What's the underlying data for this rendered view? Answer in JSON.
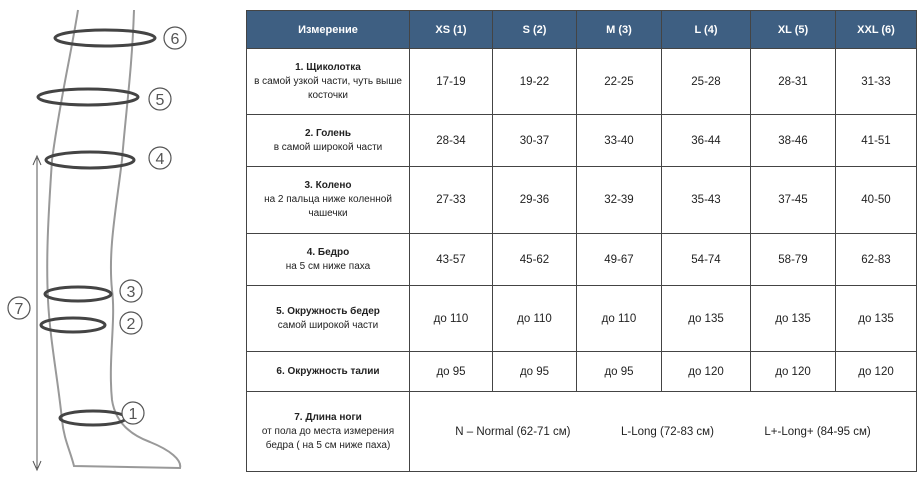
{
  "diagram": {
    "markers": [
      "1",
      "2",
      "3",
      "4",
      "5",
      "6",
      "7"
    ]
  },
  "table": {
    "headers": [
      "Измерение",
      "XS (1)",
      "S (2)",
      "M (3)",
      "L (4)",
      "XL (5)",
      "XXL (6)"
    ],
    "rows": [
      {
        "title": "1.  Щиколотка",
        "desc": "в самой узкой части, чуть выше косточки",
        "values": [
          "17-19",
          "19-22",
          "22-25",
          "25-28",
          "28-31",
          "31-33"
        ]
      },
      {
        "title": "2.  Голень",
        "desc": "в самой широкой части",
        "values": [
          "28-34",
          "30-37",
          "33-40",
          "36-44",
          "38-46",
          "41-51"
        ]
      },
      {
        "title": "3.  Колено",
        "desc": "на 2 пальца ниже коленной чашечки",
        "values": [
          "27-33",
          "29-36",
          "32-39",
          "35-43",
          "37-45",
          "40-50"
        ]
      },
      {
        "title": "4.  Бедро",
        "desc": "на 5 см ниже паха",
        "values": [
          "43-57",
          "45-62",
          "49-67",
          "54-74",
          "58-79",
          "62-83"
        ]
      },
      {
        "title": "5.   Окружность бедер",
        "desc": "самой широкой части",
        "values": [
          "до 110",
          "до 110",
          "до 110",
          "до 135",
          "до 135",
          "до 135"
        ]
      },
      {
        "title": "6.   Окружность талии",
        "desc": "",
        "values": [
          "до 95",
          "до 95",
          "до 95",
          "до 120",
          "до 120",
          "до 120"
        ]
      }
    ],
    "length_row": {
      "title": "7.  Длина ноги",
      "desc": "от пола до места измерения бедра ( на 5 см ниже паха)",
      "options": [
        "N – Normal (62-71 см)",
        "L-Long (72-83 см)",
        "L+-Long+ (84-95 см)"
      ]
    }
  }
}
